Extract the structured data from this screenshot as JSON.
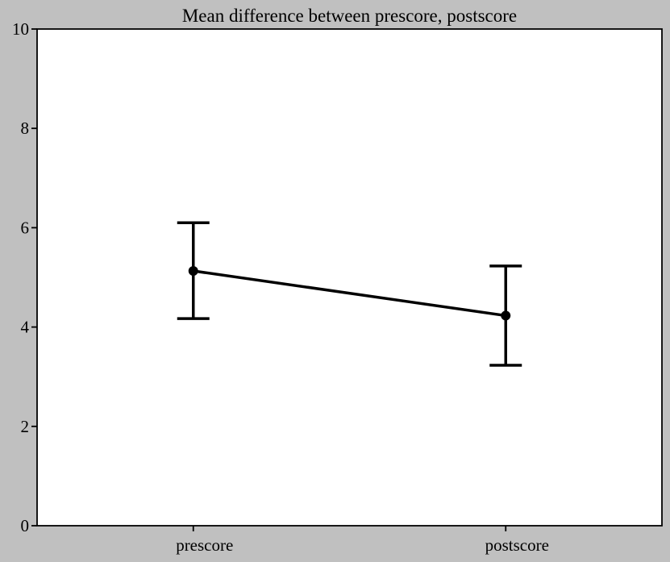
{
  "chart_data": {
    "type": "line",
    "title": "Mean difference between prescore, postscore",
    "xlabel": "",
    "ylabel": "",
    "categories": [
      "prescore",
      "postscore"
    ],
    "series": [
      {
        "values": [
          5.13,
          4.23
        ],
        "error_low": [
          4.17,
          3.23
        ],
        "error_high": [
          6.1,
          5.23
        ]
      }
    ],
    "ylim": [
      0,
      10
    ],
    "yticks": [
      "0",
      "2",
      "4",
      "6",
      "8",
      "10"
    ],
    "grid": false,
    "legend": "none",
    "colors": {
      "background": "#c0c0c0",
      "plot_area": "#ffffff",
      "line": "#000000"
    }
  }
}
